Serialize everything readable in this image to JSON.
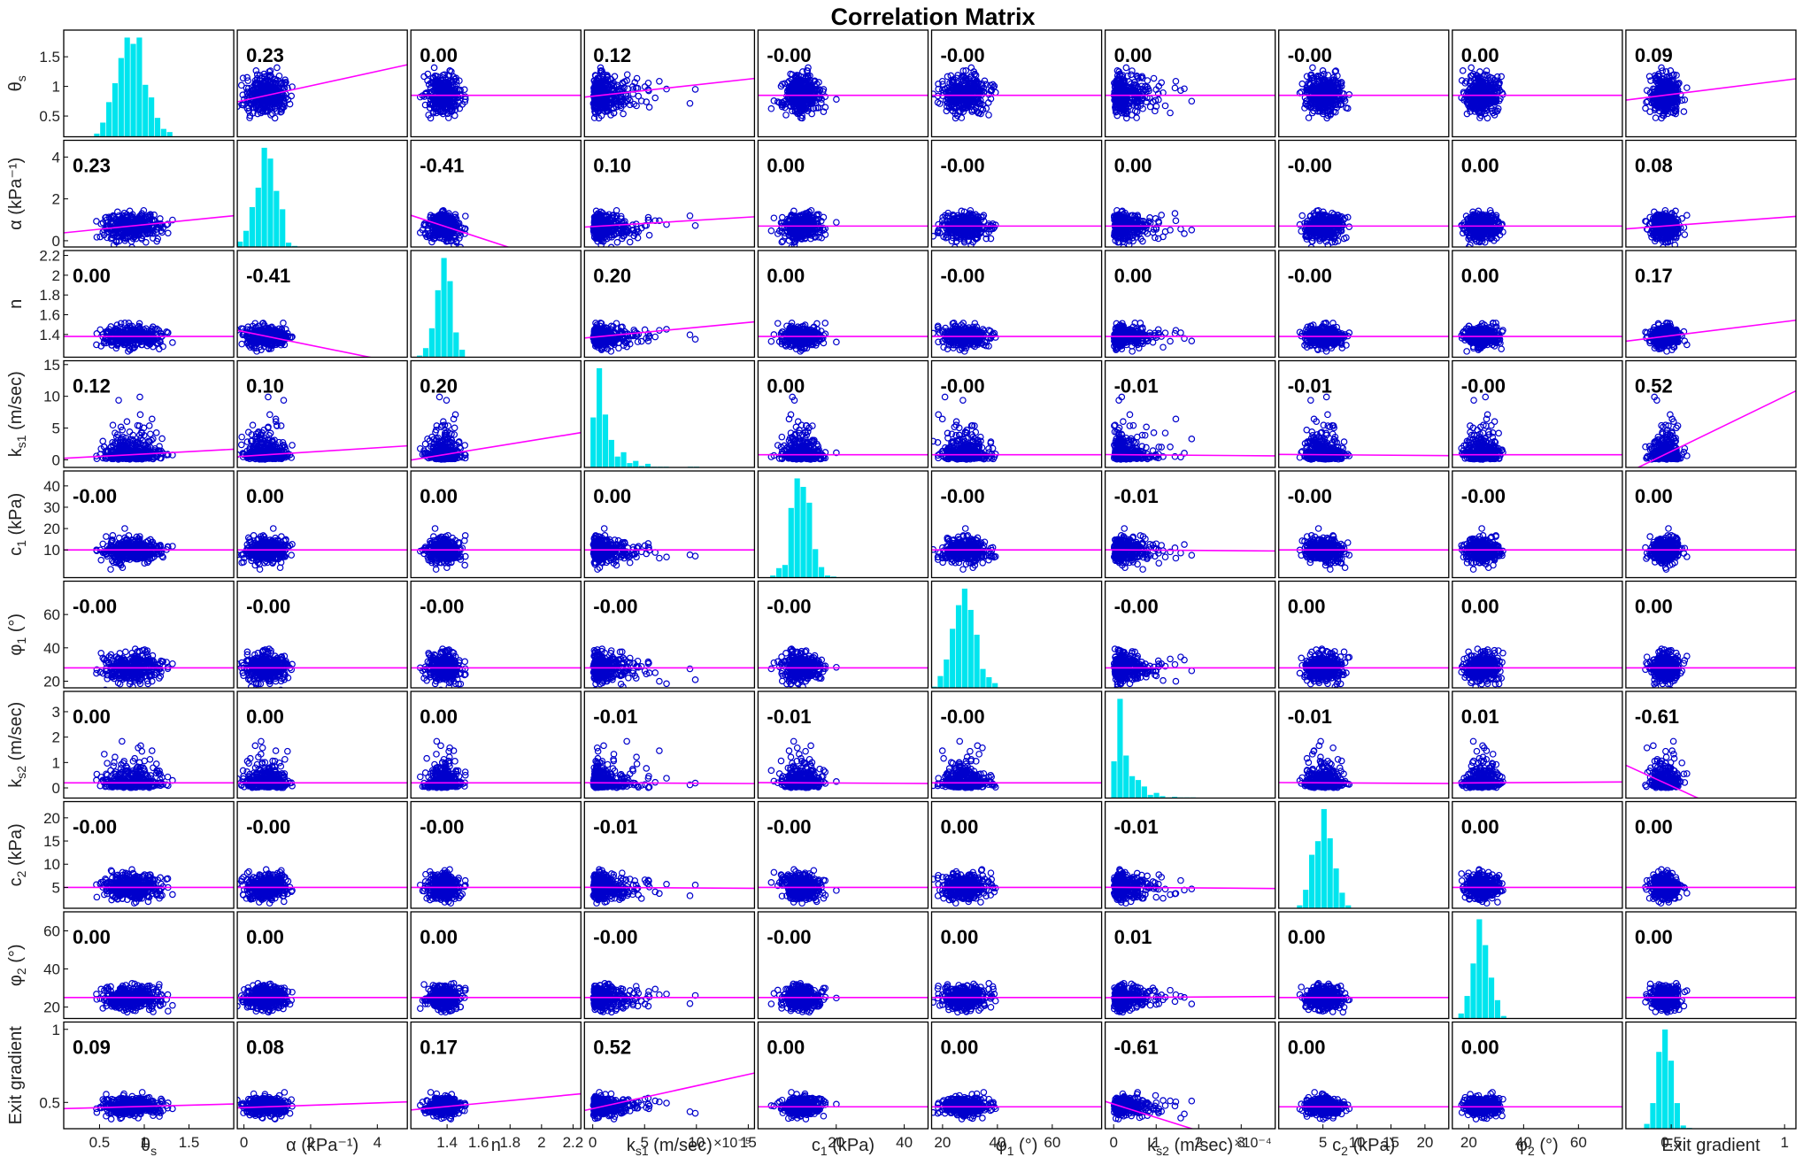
{
  "chart_data": {
    "type": "scatter",
    "title": "Correlation Matrix",
    "variables": [
      {
        "label": "θ",
        "sub": "s",
        "axis_suffix": "",
        "tick_labels": [
          "0.5",
          "1",
          "1.5"
        ],
        "tick_values": [
          0.5,
          1,
          1.5
        ],
        "xlim": [
          0.1,
          2.0
        ],
        "y_tick_labels": [
          "0.5",
          "1",
          "1.5"
        ],
        "y_tick_values": [
          0.5,
          1,
          1.5
        ],
        "ylim": [
          0.15,
          1.95
        ],
        "mean": 0.85,
        "sd": 0.16,
        "exponent": ""
      },
      {
        "label": "α",
        "sub": "",
        "axis_suffix": "(kPa⁻¹)",
        "tick_labels": [
          "0",
          "2",
          "4"
        ],
        "tick_values": [
          0,
          2,
          4
        ],
        "xlim": [
          -0.2,
          4.9
        ],
        "y_tick_labels": [
          "0",
          "2",
          "4"
        ],
        "y_tick_values": [
          0,
          2,
          4
        ],
        "ylim": [
          -0.3,
          4.8
        ],
        "mean": 0.7,
        "sd": 0.3,
        "exponent": ""
      },
      {
        "label": "n",
        "sub": "",
        "axis_suffix": "",
        "tick_labels": [
          "1.4",
          "1.6",
          "1.8",
          "2",
          "2.2"
        ],
        "tick_values": [
          1.4,
          1.6,
          1.8,
          2.0,
          2.2
        ],
        "xlim": [
          1.17,
          2.25
        ],
        "y_tick_labels": [
          "1.4",
          "1.6",
          "1.8",
          "2",
          "2.2"
        ],
        "y_tick_values": [
          1.4,
          1.6,
          1.8,
          2.0,
          2.2
        ],
        "ylim": [
          1.17,
          2.25
        ],
        "mean": 1.38,
        "sd": 0.05,
        "exponent": ""
      },
      {
        "label": "k",
        "sub": "s1",
        "axis_suffix": "(m/sec)",
        "tick_labels": [
          "0",
          "5",
          "10",
          "15"
        ],
        "tick_values": [
          0,
          5,
          10,
          15
        ],
        "xlim": [
          -0.8,
          15.6
        ],
        "y_tick_labels": [
          "0",
          "5",
          "10",
          "15"
        ],
        "y_tick_values": [
          0,
          5,
          10,
          15
        ],
        "ylim": [
          -1.2,
          15.6
        ],
        "mean": 0.8,
        "sd": 1.0,
        "exponent": "×10⁻⁵"
      },
      {
        "label": "c",
        "sub": "1",
        "axis_suffix": "(kPa)",
        "tick_labels": [
          "20",
          "40"
        ],
        "tick_values": [
          20,
          40
        ],
        "xlim": [
          -3,
          47
        ],
        "y_tick_labels": [
          "10",
          "20",
          "30",
          "40"
        ],
        "y_tick_values": [
          10,
          20,
          30,
          40
        ],
        "ylim": [
          -3,
          47
        ],
        "mean": 10,
        "sd": 2.8,
        "exponent": ""
      },
      {
        "label": "φ",
        "sub": "1",
        "axis_suffix": "(°)",
        "tick_labels": [
          "20",
          "40",
          "60"
        ],
        "tick_values": [
          20,
          40,
          60
        ],
        "xlim": [
          16,
          78
        ],
        "y_tick_labels": [
          "20",
          "40",
          "60"
        ],
        "y_tick_values": [
          20,
          40,
          60
        ],
        "ylim": [
          16,
          80
        ],
        "mean": 28,
        "sd": 4,
        "exponent": ""
      },
      {
        "label": "k",
        "sub": "s2",
        "axis_suffix": "(m/sec)",
        "tick_labels": [
          "0",
          "1",
          "2",
          "3"
        ],
        "tick_values": [
          0,
          1,
          2,
          3
        ],
        "xlim": [
          -0.2,
          3.8
        ],
        "y_tick_labels": [
          "0",
          "1",
          "2",
          "3"
        ],
        "y_tick_values": [
          0,
          1,
          2,
          3
        ],
        "ylim": [
          -0.4,
          3.8
        ],
        "mean": 0.2,
        "sd": 0.2,
        "exponent": "×10⁻⁴"
      },
      {
        "label": "c",
        "sub": "2",
        "axis_suffix": "(kPa)",
        "tick_labels": [
          "5",
          "10",
          "15",
          "20"
        ],
        "tick_values": [
          5,
          10,
          15,
          20
        ],
        "xlim": [
          -1.5,
          23.5
        ],
        "y_tick_labels": [
          "5",
          "10",
          "15",
          "20"
        ],
        "y_tick_values": [
          5,
          10,
          15,
          20
        ],
        "ylim": [
          0.5,
          23.5
        ],
        "mean": 5,
        "sd": 1.3,
        "exponent": ""
      },
      {
        "label": "φ",
        "sub": "2",
        "axis_suffix": "(°)",
        "tick_labels": [
          "20",
          "40",
          "60"
        ],
        "tick_values": [
          20,
          40,
          60
        ],
        "xlim": [
          14,
          76
        ],
        "y_tick_labels": [
          "20",
          "40",
          "60"
        ],
        "y_tick_values": [
          20,
          40,
          60
        ],
        "ylim": [
          14,
          70
        ],
        "mean": 25,
        "sd": 3,
        "exponent": ""
      },
      {
        "label": "Exit gradient",
        "sub": "",
        "axis_suffix": "",
        "tick_labels": [
          "0.5",
          "1"
        ],
        "tick_values": [
          0.5,
          1
        ],
        "xlim": [
          0.3,
          1.05
        ],
        "y_tick_labels": [
          "0.5",
          "1"
        ],
        "y_tick_values": [
          0.5,
          1
        ],
        "ylim": [
          0.32,
          1.05
        ],
        "mean": 0.47,
        "sd": 0.03,
        "exponent": ""
      }
    ],
    "correlations": [
      [
        "",
        "0.23",
        "0.00",
        "0.12",
        "-0.00",
        "-0.00",
        "0.00",
        "-0.00",
        "0.00",
        "0.09"
      ],
      [
        "0.23",
        "",
        "-0.41",
        "0.10",
        "0.00",
        "-0.00",
        "0.00",
        "-0.00",
        "0.00",
        "0.08"
      ],
      [
        "0.00",
        "-0.41",
        "",
        "0.20",
        "0.00",
        "-0.00",
        "0.00",
        "-0.00",
        "0.00",
        "0.17"
      ],
      [
        "0.12",
        "0.10",
        "0.20",
        "",
        "0.00",
        "-0.00",
        "-0.01",
        "-0.01",
        "-0.00",
        "0.52"
      ],
      [
        "-0.00",
        "0.00",
        "0.00",
        "0.00",
        "",
        "-0.00",
        "-0.01",
        "-0.00",
        "-0.00",
        "0.00"
      ],
      [
        "-0.00",
        "-0.00",
        "-0.00",
        "-0.00",
        "-0.00",
        "",
        "-0.00",
        "0.00",
        "0.00",
        "0.00"
      ],
      [
        "0.00",
        "0.00",
        "0.00",
        "-0.01",
        "-0.01",
        "-0.00",
        "",
        "-0.01",
        "0.01",
        "-0.61"
      ],
      [
        "-0.00",
        "-0.00",
        "-0.00",
        "-0.01",
        "-0.00",
        "0.00",
        "-0.01",
        "",
        "0.00",
        "0.00"
      ],
      [
        "0.00",
        "0.00",
        "0.00",
        "-0.00",
        "-0.00",
        "0.00",
        "0.01",
        "0.00",
        "",
        "0.00"
      ],
      [
        "0.09",
        "0.08",
        "0.17",
        "0.52",
        "0.00",
        "0.00",
        "-0.61",
        "0.00",
        "0.00",
        ""
      ]
    ],
    "colors": {
      "points": "#0000cc",
      "histogram": "#00e5ee",
      "fit_line": "#ff00ff",
      "frame": "#000000",
      "corr_text": "#000000"
    },
    "grid": false,
    "legend": "none"
  }
}
